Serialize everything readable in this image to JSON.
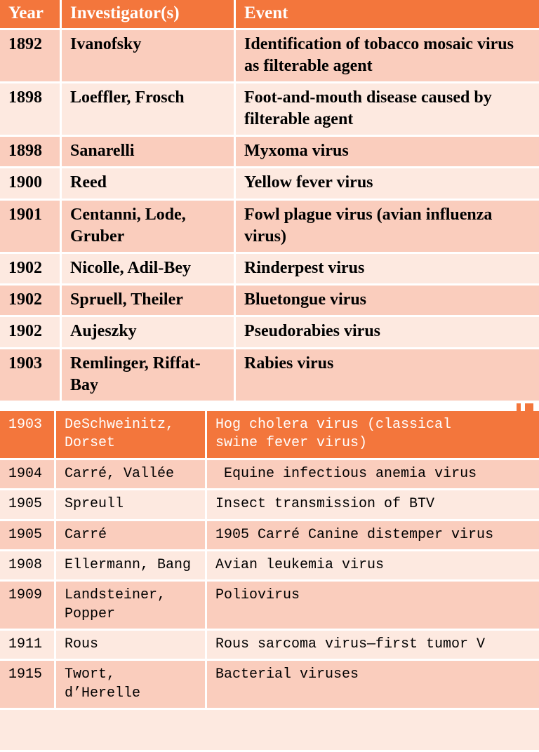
{
  "colors": {
    "header_orange": "#F3763C",
    "row_dark": "#FACDBD",
    "row_light": "#FDE9E0",
    "grid_white": "#FFFFFF",
    "header_text": "#FFFFFF",
    "body_text": "#000000"
  },
  "table_top": {
    "columns": [
      "Year",
      "Investigator(s)",
      "Event"
    ],
    "rows": [
      {
        "year": "1892",
        "investigators": "Ivanofsky",
        "event": "Identification of tobacco mosaic virus as filterable agent"
      },
      {
        "year": "1898",
        "investigators": "Loeffler, Frosch",
        "event": "Foot-and-mouth disease caused by filterable agent"
      },
      {
        "year": "1898",
        "investigators": "Sanarelli",
        "event": "Myxoma virus"
      },
      {
        "year": "1900",
        "investigators": "Reed",
        "event": "Yellow fever virus"
      },
      {
        "year": "1901",
        "investigators": "Centanni, Lode, Gruber",
        "event": "Fowl plague virus (avian influenza virus)"
      },
      {
        "year": "1902",
        "investigators": "Nicolle, Adil-Bey",
        "event": "Rinderpest virus"
      },
      {
        "year": "1902",
        "investigators": "Spruell, Theiler",
        "event": "Bluetongue virus"
      },
      {
        "year": "1902",
        "investigators": "Aujeszky",
        "event": "Pseudorabies virus"
      },
      {
        "year": "1903",
        "investigators": "Remlinger, Riffat-Bay",
        "event": "Rabies virus"
      }
    ]
  },
  "table_bottom": {
    "header_row": {
      "year": "1903",
      "investigators": "DeSchweinitz, Dorset",
      "event": "Hog cholera virus (classical swine fever virus)"
    },
    "rows": [
      {
        "year": "1904",
        "investigators": "Carré, Vallée",
        "event": " Equine infectious anemia virus"
      },
      {
        "year": "1905",
        "investigators": "Spreull",
        "event": "Insect transmission of BTV"
      },
      {
        "year": "1905",
        "investigators": "Carré",
        "event": "1905 Carré Canine distemper virus"
      },
      {
        "year": "1908",
        "investigators": "Ellermann, Bang",
        "event": "Avian leukemia virus"
      },
      {
        "year": "1909",
        "investigators": "Landsteiner, Popper",
        "event": "Poliovirus"
      },
      {
        "year": "1911",
        "investigators": "Rous",
        "event": "Rous sarcoma virus—first tumor V"
      },
      {
        "year": "1915",
        "investigators": "Twort, d’Herelle",
        "event": "Bacterial viruses"
      }
    ]
  }
}
